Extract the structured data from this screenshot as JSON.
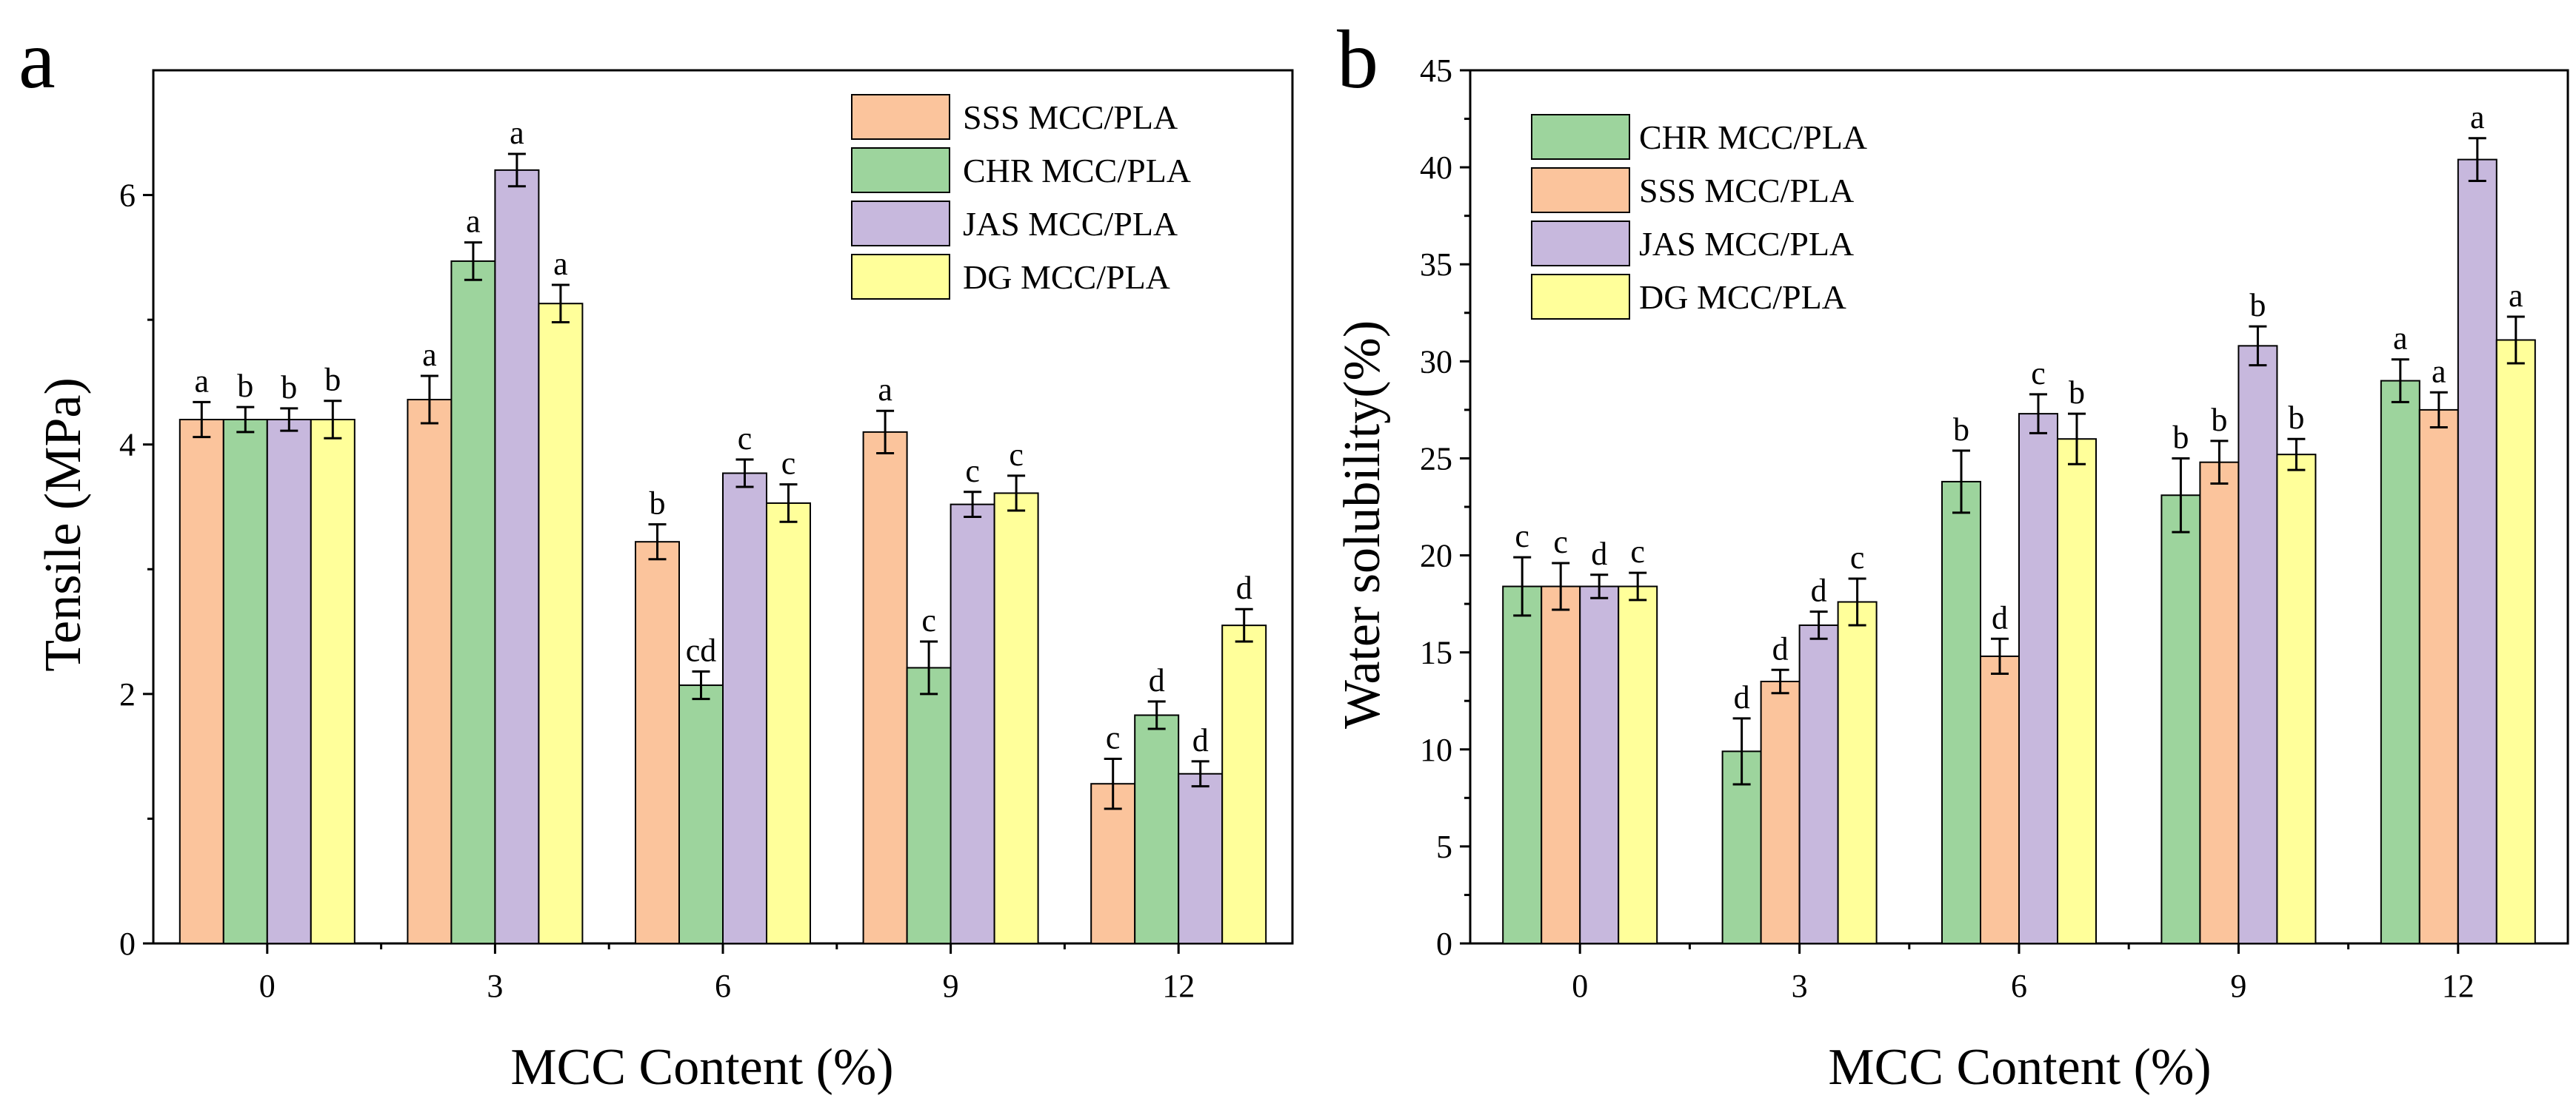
{
  "chart_data": [
    {
      "panel_label": "a",
      "type": "bar",
      "xlabel": "MCC Content (%)",
      "ylabel": "Tensile (MPa)",
      "categories": [
        "0",
        "3",
        "6",
        "9",
        "12"
      ],
      "ylim": [
        0,
        7
      ],
      "yticks": [
        0,
        2,
        4,
        6
      ],
      "legend_position": "top-right",
      "grid": false,
      "series": [
        {
          "name": "SSS MCC/PLA",
          "color": "#fbc49c",
          "values": [
            4.2,
            4.36,
            3.22,
            4.1,
            1.28
          ],
          "errors": [
            0.14,
            0.19,
            0.14,
            0.17,
            0.2
          ],
          "letters": [
            "a",
            "a",
            "b",
            "a",
            "c"
          ]
        },
        {
          "name": "CHR MCC/PLA",
          "color": "#9dd49d",
          "values": [
            4.2,
            5.47,
            2.07,
            2.21,
            1.83
          ],
          "errors": [
            0.1,
            0.15,
            0.11,
            0.21,
            0.11
          ],
          "letters": [
            "b",
            "a",
            "cd",
            "c",
            "d"
          ]
        },
        {
          "name": "JAS MCC/PLA",
          "color": "#c7b8dd",
          "values": [
            4.2,
            6.2,
            3.77,
            3.52,
            1.36
          ],
          "errors": [
            0.09,
            0.13,
            0.11,
            0.1,
            0.1
          ],
          "letters": [
            "b",
            "a",
            "c",
            "c",
            "d"
          ]
        },
        {
          "name": "DG MCC/PLA",
          "color": "#ffff9a",
          "values": [
            4.2,
            5.13,
            3.53,
            3.61,
            2.55
          ],
          "errors": [
            0.15,
            0.15,
            0.15,
            0.14,
            0.13
          ],
          "letters": [
            "b",
            "a",
            "c",
            "c",
            "d"
          ]
        }
      ]
    },
    {
      "panel_label": "b",
      "type": "bar",
      "xlabel": "MCC Content (%)",
      "ylabel": "Water solubility(%)",
      "categories": [
        "0",
        "3",
        "6",
        "9",
        "12"
      ],
      "ylim": [
        0,
        45
      ],
      "yticks": [
        0,
        5,
        10,
        15,
        20,
        25,
        30,
        35,
        40,
        45
      ],
      "legend_position": "top-left",
      "grid": false,
      "series": [
        {
          "name": "CHR MCC/PLA",
          "color": "#9dd49d",
          "values": [
            18.4,
            9.9,
            23.8,
            23.1,
            29.0
          ],
          "errors": [
            1.5,
            1.7,
            1.6,
            1.9,
            1.1
          ],
          "letters": [
            "c",
            "d",
            "b",
            "b",
            "a"
          ]
        },
        {
          "name": "SSS MCC/PLA",
          "color": "#fbc49c",
          "values": [
            18.4,
            13.5,
            14.8,
            24.8,
            27.5
          ],
          "errors": [
            1.2,
            0.6,
            0.9,
            1.1,
            0.9
          ],
          "letters": [
            "c",
            "d",
            "d",
            "b",
            "a"
          ]
        },
        {
          "name": "JAS MCC/PLA",
          "color": "#c7b8dd",
          "values": [
            18.4,
            16.4,
            27.3,
            30.8,
            40.4
          ],
          "errors": [
            0.6,
            0.7,
            1.0,
            1.0,
            1.1
          ],
          "letters": [
            "d",
            "d",
            "c",
            "b",
            "a"
          ]
        },
        {
          "name": "DG MCC/PLA",
          "color": "#ffff9a",
          "values": [
            18.4,
            17.6,
            26.0,
            25.2,
            31.1
          ],
          "errors": [
            0.7,
            1.2,
            1.3,
            0.8,
            1.2
          ],
          "letters": [
            "c",
            "c",
            "b",
            "b",
            "a"
          ]
        }
      ]
    }
  ]
}
